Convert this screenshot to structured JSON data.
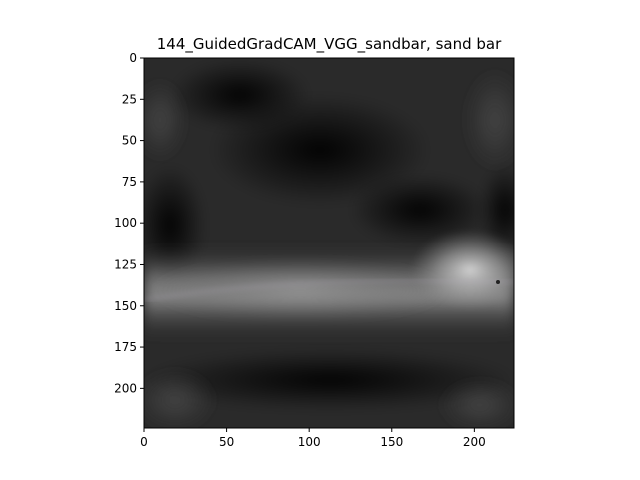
{
  "chart_data": {
    "type": "heatmap",
    "title": "144_GuidedGradCAM_VGG_sandbar, sand bar",
    "xlabel": "",
    "ylabel": "",
    "xlim": [
      0,
      224
    ],
    "ylim": [
      224,
      0
    ],
    "x_ticks": [
      0,
      50,
      100,
      150,
      200
    ],
    "y_ticks": [
      0,
      25,
      50,
      75,
      100,
      125,
      150,
      175,
      200
    ],
    "colormap": "grayscale image (Guided Grad-CAM saliency)",
    "grid": false,
    "image_description_values": {
      "bright_band_y_range": [
        115,
        155
      ],
      "brightest_region_x_range": [
        160,
        224
      ]
    }
  }
}
